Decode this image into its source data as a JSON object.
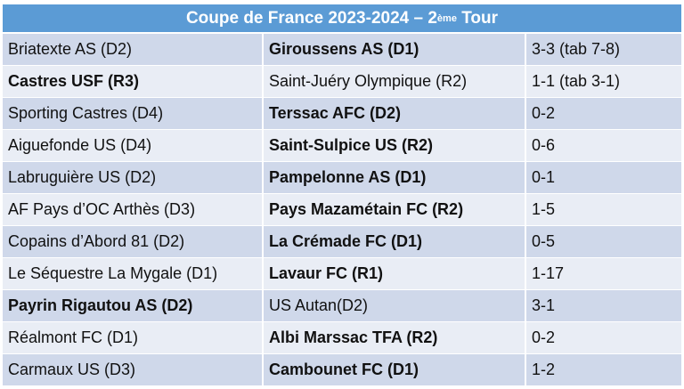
{
  "title": {
    "main": "Coupe de France 2023-2024 – 2",
    "sup": "ème",
    "end": " Tour"
  },
  "rows": [
    {
      "home": "Briatexte AS (D2)",
      "away": "Giroussens AS (D1)",
      "score": "3-3 (tab 7-8)",
      "winner": "away"
    },
    {
      "home": "Castres USF (R3)",
      "away": "Saint-Juéry Olympique (R2)",
      "score": "1-1 (tab 3-1)",
      "winner": "home"
    },
    {
      "home": "Sporting Castres (D4)",
      "away": "Terssac AFC (D2)",
      "score": "0-2",
      "winner": "away"
    },
    {
      "home": "Aiguefonde US (D4)",
      "away": "Saint-Sulpice US (R2)",
      "score": "0-6",
      "winner": "away"
    },
    {
      "home": "Labruguière US (D2)",
      "away": "Pampelonne AS (D1)",
      "score": "0-1",
      "winner": "away"
    },
    {
      "home": "AF Pays d’OC Arthès (D3)",
      "away": "Pays Mazamétain FC (R2)",
      "score": "1-5",
      "winner": "away"
    },
    {
      "home": "Copains d’Abord 81 (D2)",
      "away": "La Crémade FC (D1)",
      "score": "0-5",
      "winner": "away"
    },
    {
      "home": "Le Séquestre La Mygale (D1)",
      "away": "Lavaur FC (R1)",
      "score": "1-17",
      "winner": "away"
    },
    {
      "home": "Payrin Rigautou AS (D2)",
      "away": "US Autan(D2)",
      "score": "3-1",
      "winner": "home"
    },
    {
      "home": "Réalmont FC (D1)",
      "away": "Albi Marssac TFA (R2)",
      "score": "0-2",
      "winner": "away"
    },
    {
      "home": "Carmaux US (D3)",
      "away": "Cambounet FC (D1)",
      "score": "1-2",
      "winner": "away"
    }
  ]
}
